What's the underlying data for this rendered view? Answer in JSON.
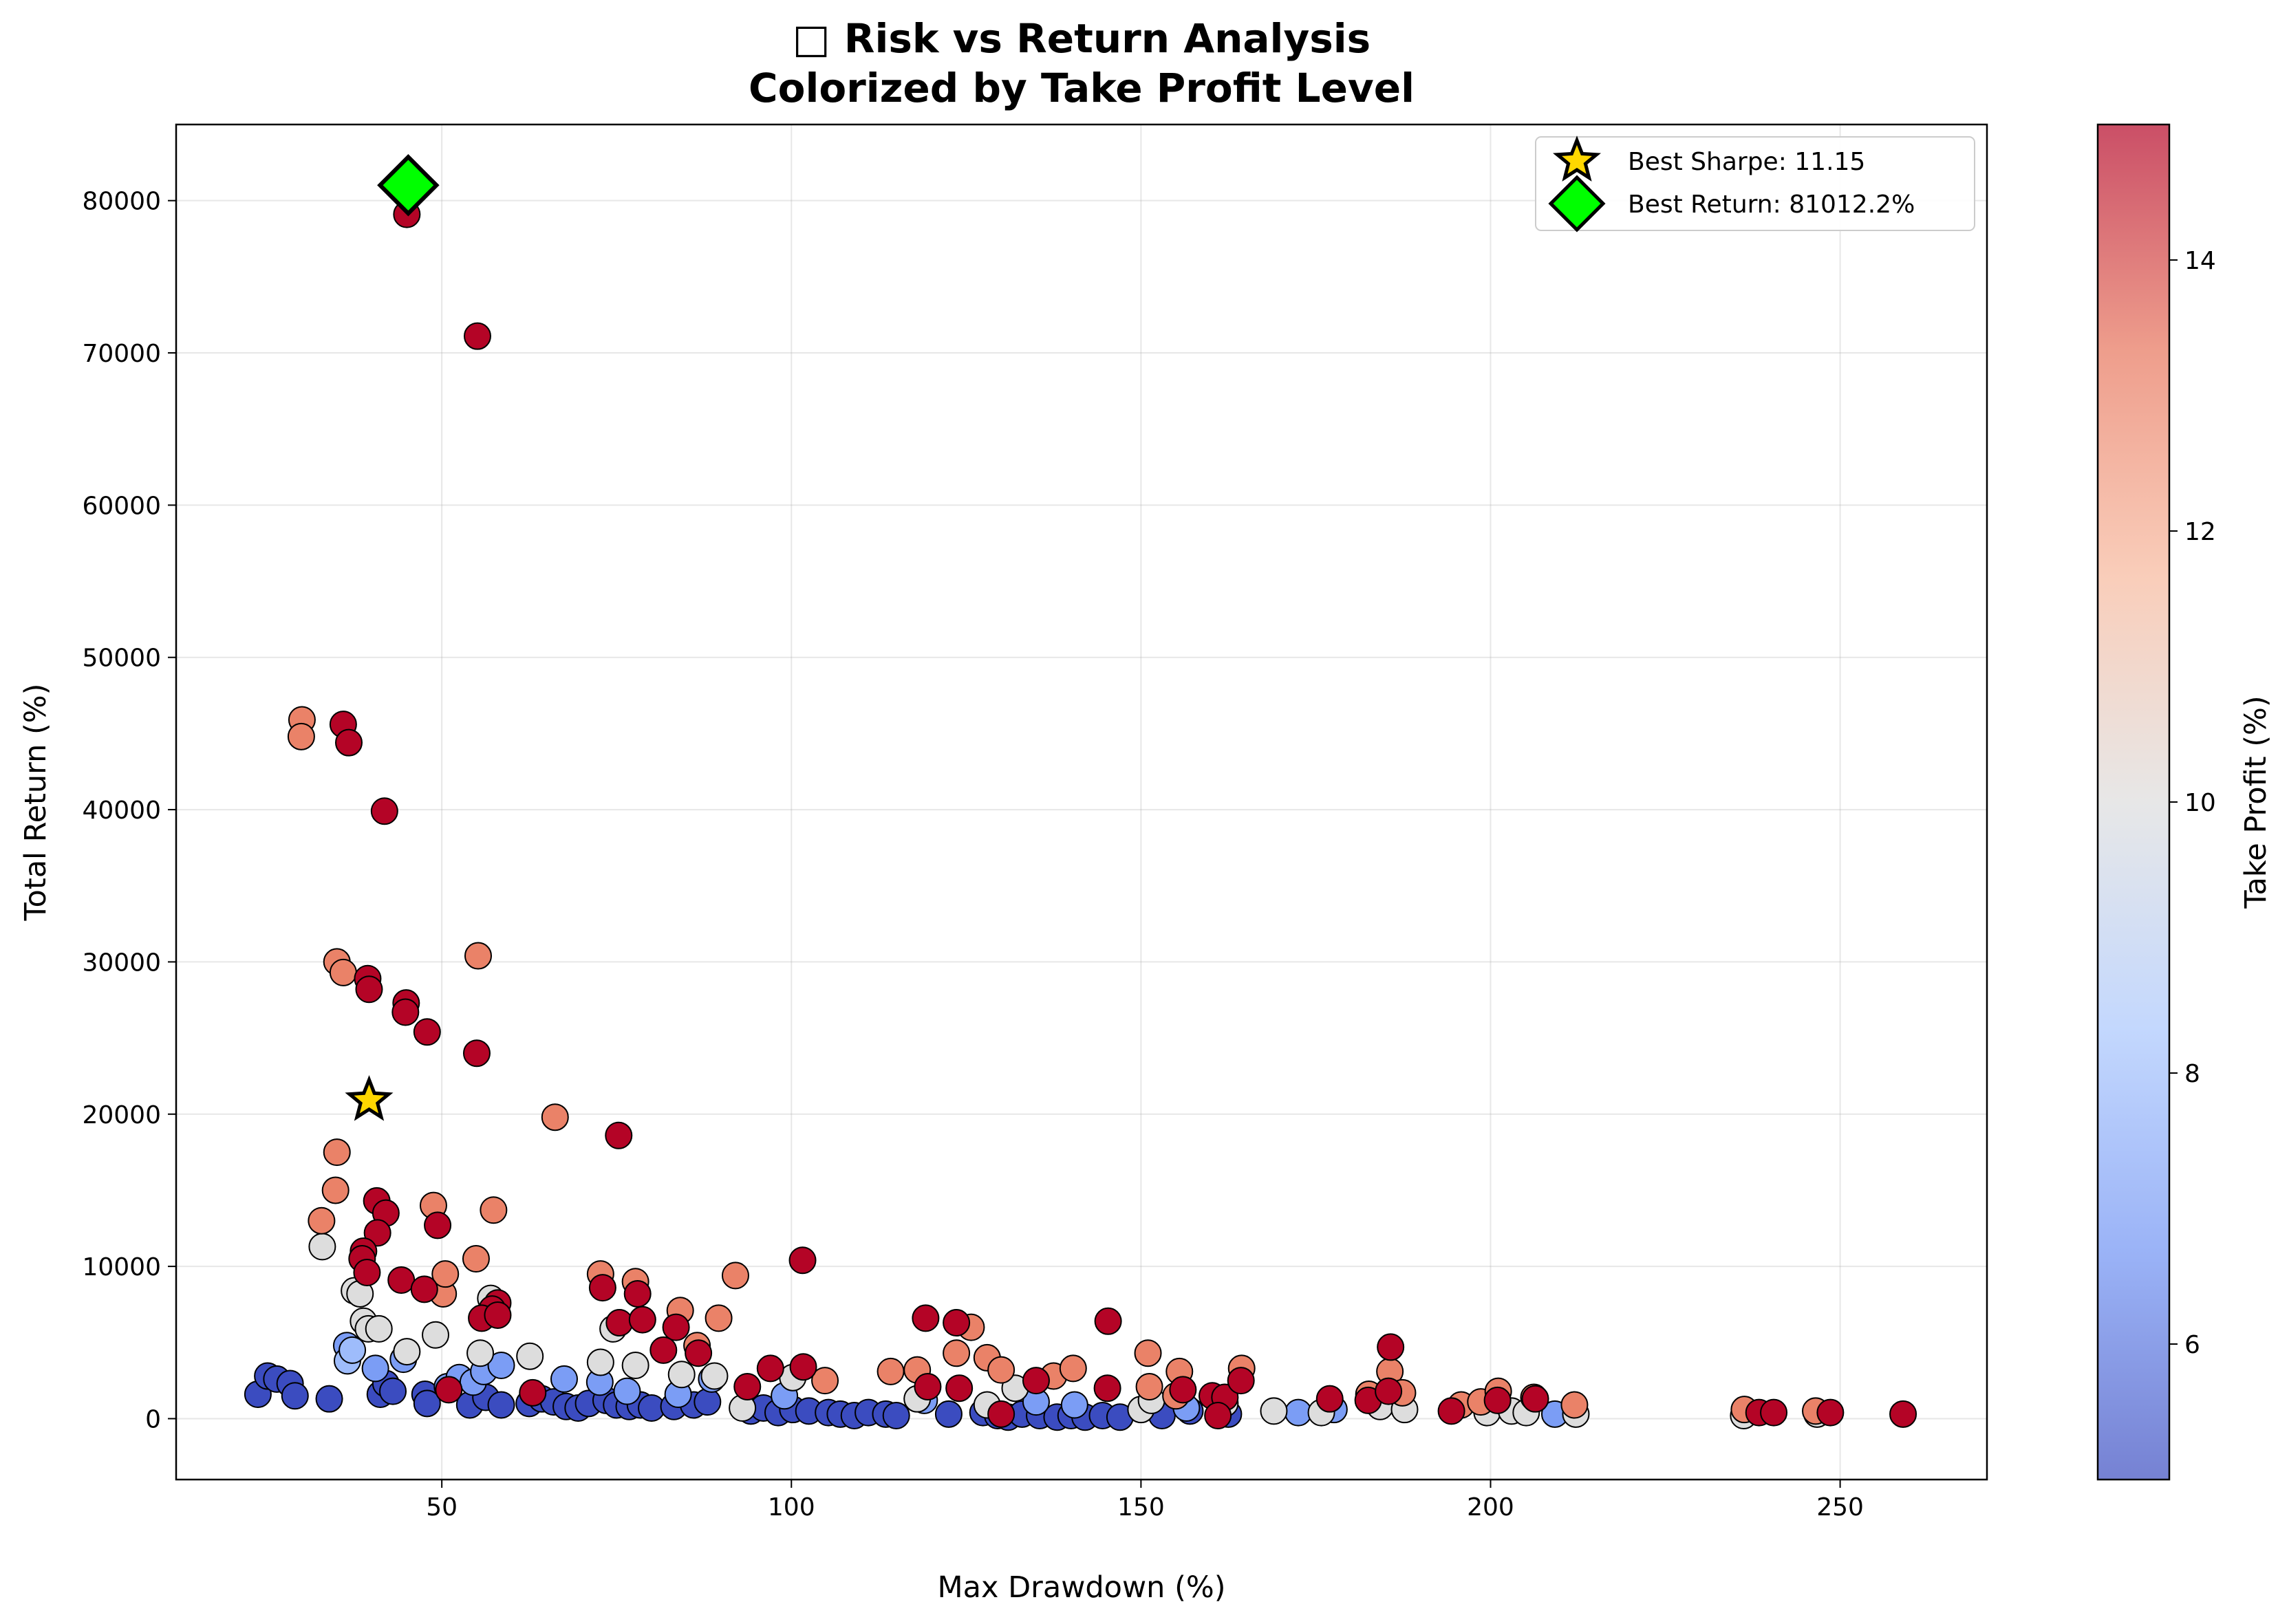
{
  "chart_data": {
    "type": "scatter",
    "title_line1": "□ Risk vs Return Analysis",
    "title_line2": "Colorized by Take Profit Level",
    "xlabel": "Max Drawdown (%)",
    "ylabel": "Total Return (%)",
    "colorbar_label": "Take Profit (%)",
    "xlim": [
      12,
      271
    ],
    "ylim": [
      -4000,
      85000
    ],
    "x_ticks": [
      50,
      100,
      150,
      200,
      250
    ],
    "y_ticks": [
      0,
      10000,
      20000,
      30000,
      40000,
      50000,
      60000,
      70000,
      80000
    ],
    "colorbar_range": [
      5,
      15
    ],
    "colorbar_ticks": [
      6,
      8,
      10,
      12,
      14
    ],
    "colormap": "coolwarm",
    "colormap_stops": [
      "#3b4cc0",
      "#6f92f3",
      "#aac7fd",
      "#dddddd",
      "#f7b89c",
      "#e7745b",
      "#b40426"
    ],
    "grid": true,
    "legend_position": "top-right",
    "legend": [
      {
        "label": "Best Sharpe: 11.15",
        "marker": "star",
        "color": "#ffd700"
      },
      {
        "label": "Best Return: 81012.2%",
        "marker": "diamond",
        "color": "#00ff00"
      }
    ],
    "best_sharpe": {
      "x": 39.6,
      "y": 20900
    },
    "best_return": {
      "x": 45.2,
      "y": 81012
    },
    "points": [
      [
        23.7,
        1600,
        5
      ],
      [
        25.1,
        2800,
        5
      ],
      [
        26.4,
        2600,
        5
      ],
      [
        28.3,
        2300,
        5
      ],
      [
        29.0,
        1500,
        5
      ],
      [
        33.9,
        1300,
        5
      ],
      [
        41.2,
        1600,
        5
      ],
      [
        42.0,
        2300,
        5
      ],
      [
        43.0,
        1800,
        5
      ],
      [
        47.6,
        1600,
        5
      ],
      [
        47.9,
        1000,
        5
      ],
      [
        54.0,
        900,
        5
      ],
      [
        56.3,
        1400,
        5
      ],
      [
        58.5,
        900,
        5
      ],
      [
        62.5,
        1000,
        5
      ],
      [
        64.3,
        1300,
        5
      ],
      [
        66.0,
        1100,
        5
      ],
      [
        67.8,
        800,
        5
      ],
      [
        69.5,
        700,
        5
      ],
      [
        71.0,
        1000,
        5
      ],
      [
        73.5,
        1200,
        5
      ],
      [
        75.0,
        900,
        5
      ],
      [
        76.8,
        800,
        5
      ],
      [
        78.4,
        900,
        5
      ],
      [
        80.0,
        700,
        5
      ],
      [
        83.2,
        800,
        5
      ],
      [
        86.0,
        900,
        5
      ],
      [
        88.0,
        1100,
        5
      ],
      [
        94.2,
        500,
        5
      ],
      [
        96.0,
        700,
        5
      ],
      [
        98.1,
        400,
        5
      ],
      [
        100.2,
        600,
        5
      ],
      [
        102.5,
        500,
        5
      ],
      [
        105.3,
        400,
        5
      ],
      [
        107.0,
        300,
        5
      ],
      [
        109.0,
        200,
        5
      ],
      [
        111.0,
        400,
        5
      ],
      [
        113.5,
        300,
        5
      ],
      [
        115.0,
        200,
        5
      ],
      [
        122.5,
        300,
        5
      ],
      [
        127.4,
        400,
        5
      ],
      [
        129.5,
        200,
        5
      ],
      [
        131.0,
        100,
        5
      ],
      [
        133.0,
        300,
        5
      ],
      [
        135.5,
        200,
        5
      ],
      [
        138.0,
        100,
        5
      ],
      [
        140.0,
        200,
        5
      ],
      [
        142.0,
        100,
        5
      ],
      [
        144.5,
        200,
        5
      ],
      [
        147.0,
        100,
        5
      ],
      [
        153.0,
        200,
        5
      ],
      [
        157.0,
        500,
        5
      ],
      [
        162.5,
        300,
        5
      ],
      [
        36.4,
        4800,
        7
      ],
      [
        40.5,
        3300,
        7
      ],
      [
        44.5,
        3900,
        7
      ],
      [
        50.8,
        2100,
        7
      ],
      [
        52.5,
        2700,
        7
      ],
      [
        54.5,
        2400,
        7
      ],
      [
        56.0,
        3100,
        7
      ],
      [
        58.5,
        3500,
        7
      ],
      [
        67.5,
        2600,
        7
      ],
      [
        72.6,
        2400,
        7
      ],
      [
        76.5,
        1800,
        7
      ],
      [
        83.8,
        1600,
        7
      ],
      [
        88.6,
        2600,
        7
      ],
      [
        99.0,
        1500,
        7
      ],
      [
        119.0,
        1200,
        7
      ],
      [
        135.0,
        1100,
        7
      ],
      [
        140.5,
        900,
        7
      ],
      [
        156.5,
        700,
        7
      ],
      [
        172.5,
        400,
        7
      ],
      [
        177.6,
        600,
        7
      ],
      [
        209.2,
        300,
        7
      ],
      [
        36.5,
        3800,
        8
      ],
      [
        37.2,
        4500,
        8
      ],
      [
        32.9,
        11300,
        10
      ],
      [
        37.5,
        8400,
        10
      ],
      [
        38.3,
        8200,
        10
      ],
      [
        38.8,
        6400,
        10
      ],
      [
        39.5,
        5900,
        10
      ],
      [
        41.0,
        5900,
        10
      ],
      [
        45.0,
        4400,
        10
      ],
      [
        49.1,
        5500,
        10
      ],
      [
        55.5,
        4300,
        10
      ],
      [
        57.0,
        7900,
        10
      ],
      [
        62.6,
        4100,
        10
      ],
      [
        72.7,
        3700,
        10
      ],
      [
        74.5,
        5900,
        10
      ],
      [
        77.7,
        3500,
        10
      ],
      [
        84.3,
        2900,
        10
      ],
      [
        89.0,
        2800,
        10
      ],
      [
        93.0,
        700,
        10
      ],
      [
        100.2,
        2700,
        10
      ],
      [
        118.0,
        1300,
        10
      ],
      [
        128.0,
        900,
        10
      ],
      [
        132.0,
        2000,
        10
      ],
      [
        150.0,
        600,
        10
      ],
      [
        151.5,
        1200,
        10
      ],
      [
        162.0,
        1000,
        10
      ],
      [
        169.0,
        500,
        10
      ],
      [
        175.8,
        400,
        10
      ],
      [
        184.2,
        800,
        10
      ],
      [
        187.7,
        600,
        10
      ],
      [
        199.5,
        400,
        10
      ],
      [
        203.0,
        500,
        10
      ],
      [
        205.1,
        400,
        10
      ],
      [
        212.2,
        300,
        10
      ],
      [
        236.2,
        200,
        10
      ],
      [
        246.7,
        300,
        10
      ],
      [
        30.0,
        45900,
        13
      ],
      [
        29.9,
        44800,
        13
      ],
      [
        35.0,
        30000,
        13
      ],
      [
        35.9,
        29300,
        13
      ],
      [
        55.2,
        30400,
        13
      ],
      [
        35.0,
        17500,
        13
      ],
      [
        32.8,
        13000,
        13
      ],
      [
        34.8,
        15000,
        13
      ],
      [
        48.8,
        14000,
        13
      ],
      [
        57.4,
        13700,
        13
      ],
      [
        54.9,
        10500,
        13
      ],
      [
        50.2,
        8200,
        13
      ],
      [
        50.5,
        9500,
        13
      ],
      [
        66.2,
        19800,
        13
      ],
      [
        72.7,
        9500,
        13
      ],
      [
        77.7,
        9000,
        13
      ],
      [
        84.1,
        7100,
        13
      ],
      [
        89.6,
        6600,
        13
      ],
      [
        92.0,
        9400,
        13
      ],
      [
        86.5,
        4800,
        13
      ],
      [
        104.8,
        2500,
        13
      ],
      [
        114.2,
        3100,
        13
      ],
      [
        118.0,
        3200,
        13
      ],
      [
        123.6,
        4300,
        13
      ],
      [
        125.7,
        6000,
        13
      ],
      [
        128.0,
        4000,
        13
      ],
      [
        130.0,
        3200,
        13
      ],
      [
        137.5,
        2800,
        13
      ],
      [
        140.3,
        3300,
        13
      ],
      [
        151.0,
        4300,
        13
      ],
      [
        151.2,
        2100,
        13
      ],
      [
        155.5,
        3100,
        13
      ],
      [
        155.0,
        1500,
        13
      ],
      [
        164.4,
        3300,
        13
      ],
      [
        182.6,
        1600,
        13
      ],
      [
        185.6,
        3100,
        13
      ],
      [
        187.4,
        1700,
        13
      ],
      [
        195.8,
        900,
        13
      ],
      [
        198.6,
        1100,
        13
      ],
      [
        201.1,
        1800,
        13
      ],
      [
        206.2,
        1400,
        13
      ],
      [
        212.0,
        900,
        13
      ],
      [
        236.3,
        600,
        13
      ],
      [
        246.5,
        500,
        13
      ],
      [
        45.0,
        79100,
        15
      ],
      [
        55.1,
        71100,
        15
      ],
      [
        35.9,
        45600,
        15
      ],
      [
        36.7,
        44400,
        15
      ],
      [
        41.8,
        39900,
        15
      ],
      [
        39.4,
        28900,
        15
      ],
      [
        39.6,
        28200,
        15
      ],
      [
        44.9,
        27300,
        15
      ],
      [
        44.8,
        26700,
        15
      ],
      [
        47.9,
        25400,
        15
      ],
      [
        55.0,
        24000,
        15
      ],
      [
        75.3,
        18600,
        15
      ],
      [
        40.7,
        14300,
        15
      ],
      [
        42.0,
        13500,
        15
      ],
      [
        49.4,
        12700,
        15
      ],
      [
        40.8,
        12200,
        15
      ],
      [
        38.8,
        11000,
        15
      ],
      [
        38.6,
        10500,
        15
      ],
      [
        39.3,
        9600,
        15
      ],
      [
        44.2,
        9100,
        15
      ],
      [
        47.5,
        8500,
        15
      ],
      [
        73.0,
        8600,
        15
      ],
      [
        78.0,
        8200,
        15
      ],
      [
        101.6,
        10400,
        15
      ],
      [
        58.0,
        7600,
        15
      ],
      [
        57.2,
        7200,
        15
      ],
      [
        55.7,
        6600,
        15
      ],
      [
        58.0,
        6800,
        15
      ],
      [
        75.4,
        6300,
        15
      ],
      [
        78.7,
        6500,
        15
      ],
      [
        83.5,
        6000,
        15
      ],
      [
        81.7,
        4500,
        15
      ],
      [
        86.7,
        4300,
        15
      ],
      [
        97.0,
        3300,
        15
      ],
      [
        101.7,
        3400,
        15
      ],
      [
        93.7,
        2100,
        15
      ],
      [
        119.2,
        6600,
        15
      ],
      [
        123.6,
        6300,
        15
      ],
      [
        145.3,
        6400,
        15
      ],
      [
        119.5,
        2100,
        15
      ],
      [
        124.0,
        2000,
        15
      ],
      [
        135.0,
        2500,
        15
      ],
      [
        145.2,
        2000,
        15
      ],
      [
        156.0,
        1900,
        15
      ],
      [
        160.2,
        1500,
        15
      ],
      [
        162.0,
        1400,
        15
      ],
      [
        164.3,
        2500,
        15
      ],
      [
        177.0,
        1300,
        15
      ],
      [
        182.5,
        1200,
        15
      ],
      [
        185.4,
        1800,
        15
      ],
      [
        185.7,
        4700,
        15
      ],
      [
        194.4,
        500,
        15
      ],
      [
        201.0,
        1200,
        15
      ],
      [
        206.4,
        1300,
        15
      ],
      [
        238.4,
        400,
        15
      ],
      [
        240.5,
        400,
        15
      ],
      [
        248.6,
        400,
        15
      ],
      [
        259.0,
        300,
        15
      ],
      [
        161.0,
        200,
        15
      ],
      [
        130.0,
        300,
        15
      ],
      [
        63.0,
        1700,
        15
      ],
      [
        51.0,
        1900,
        15
      ]
    ]
  }
}
